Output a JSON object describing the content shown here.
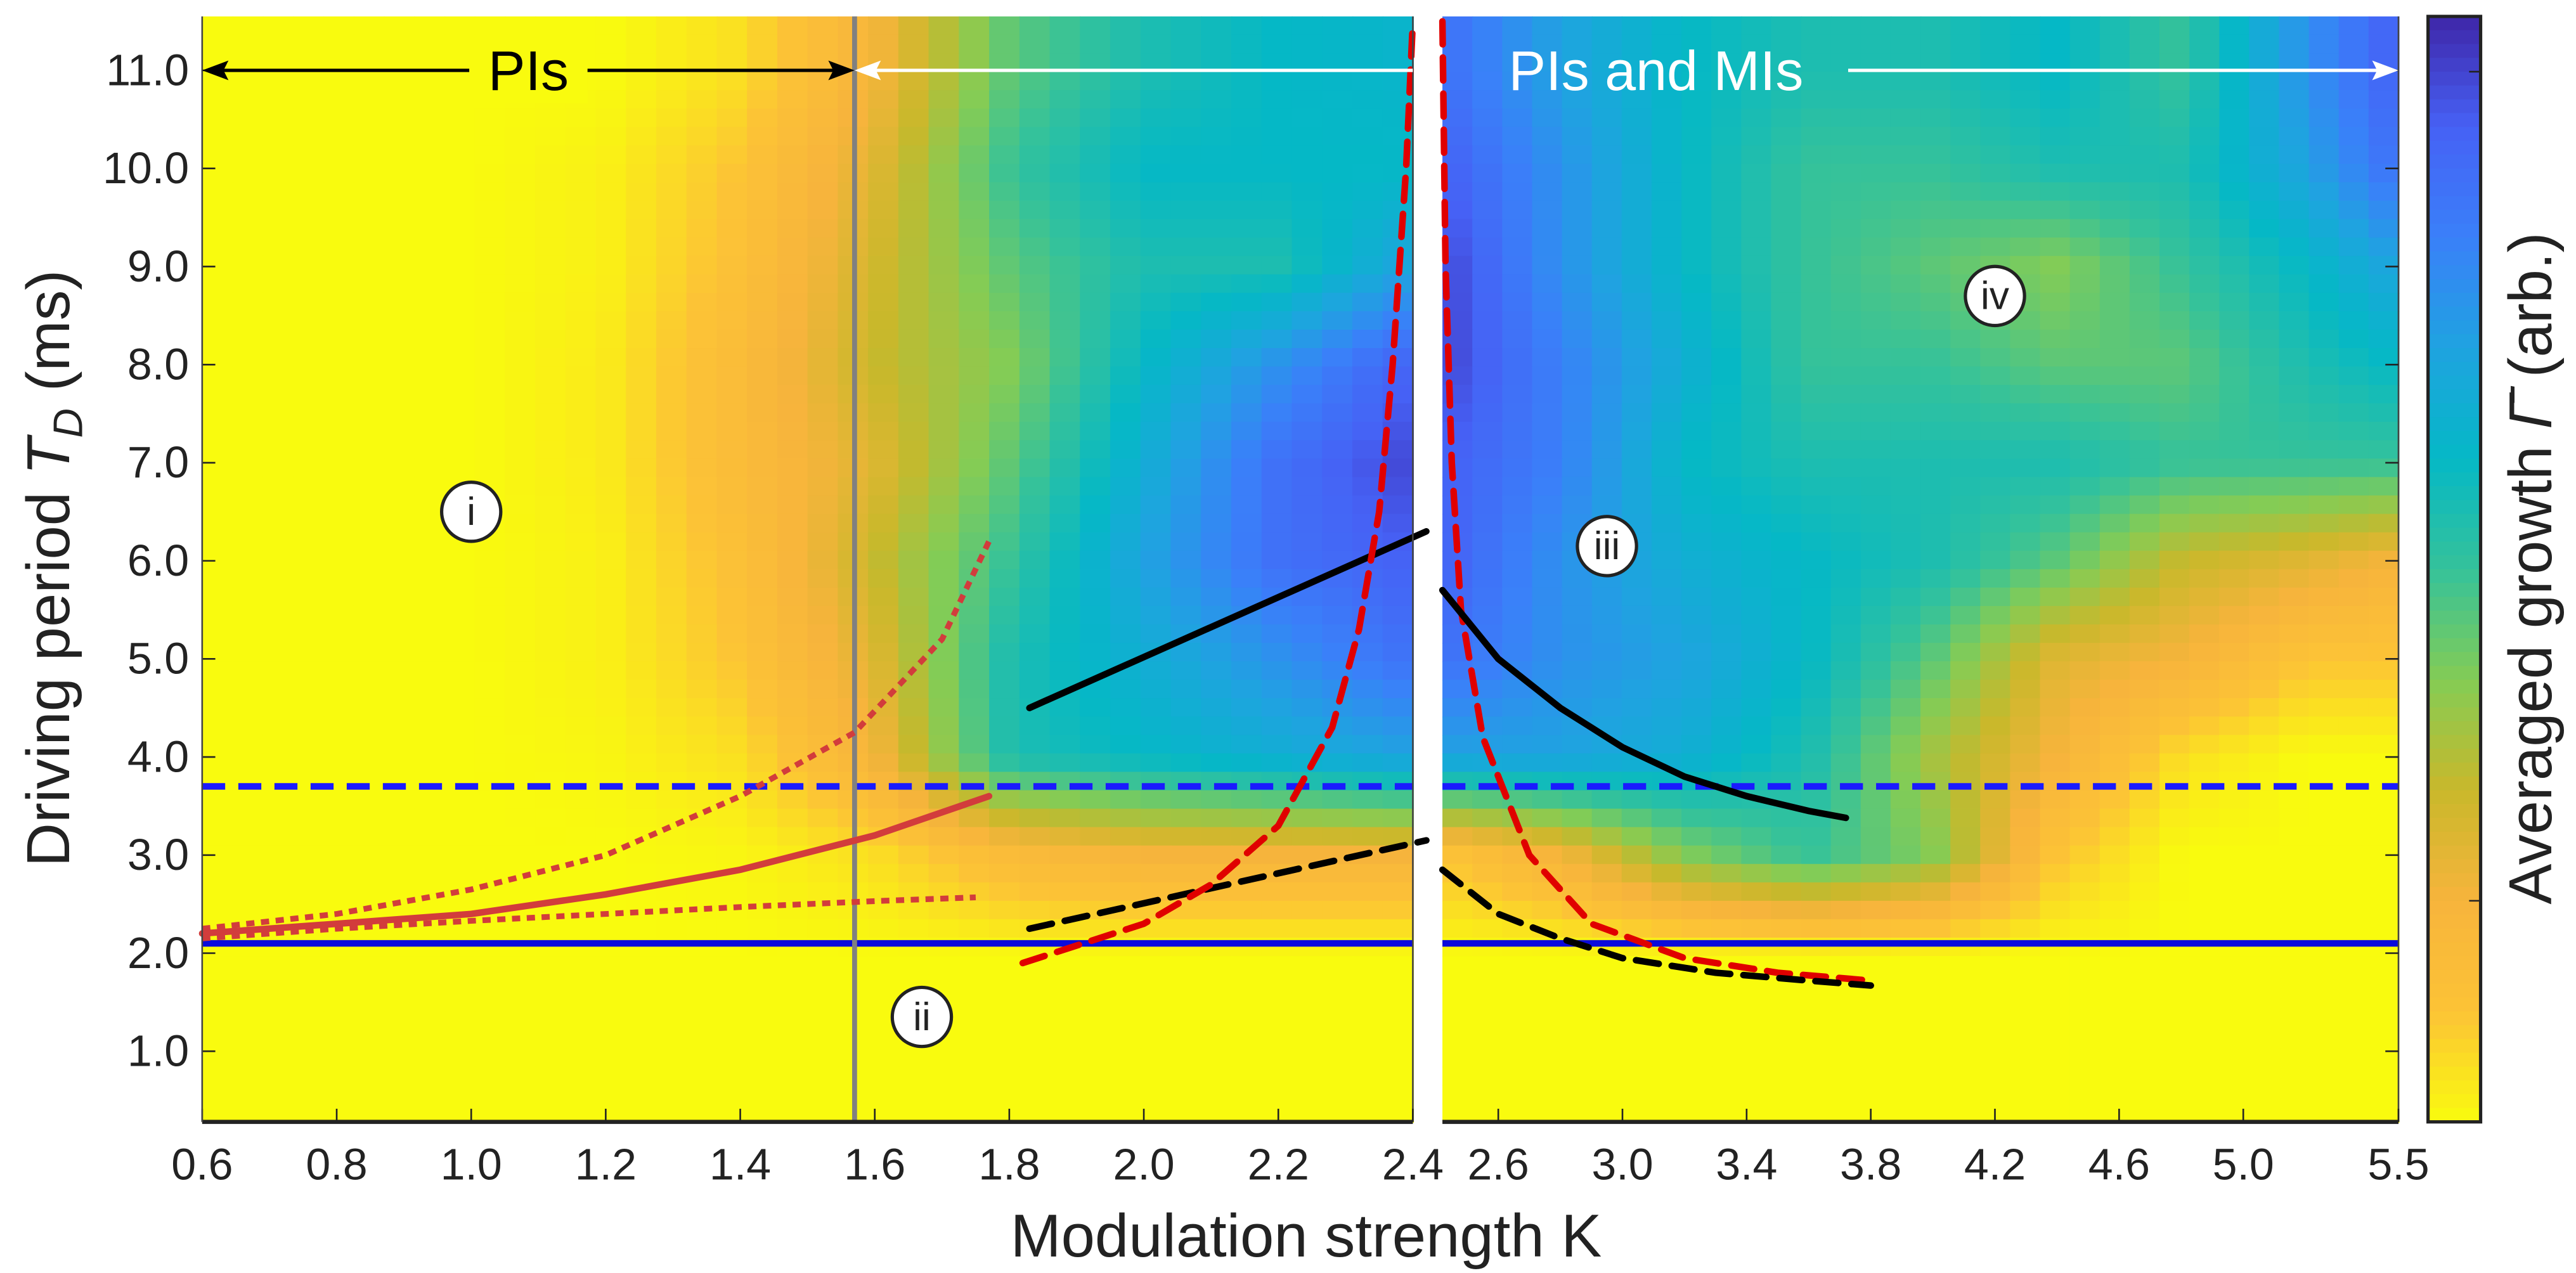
{
  "chart_data": {
    "type": "heatmap",
    "xlabel": "Modulation strength K",
    "ylabel": "Driving period T_D (ms)",
    "ylabel_parts": {
      "prefix": "Driving period ",
      "symbol": "T",
      "subscript": "D",
      "suffix": " (ms)"
    },
    "colorbar_label": "Averaged growth Γ̄ (arb.)",
    "colorbar_label_parts": {
      "prefix": "Averaged growth ",
      "symbol": "Γ̄",
      "suffix": " (arb.)"
    },
    "ylim": [
      0.28,
      11.55
    ],
    "yticks": [
      "1.0",
      "2.0",
      "3.0",
      "4.0",
      "5.0",
      "6.0",
      "7.0",
      "8.0",
      "9.0",
      "10.0",
      "11.0"
    ],
    "colormap": [
      "#f9fb0e",
      "#fcc336",
      "#f7b43c",
      "#c9b82b",
      "#84cc55",
      "#35c29a",
      "#05b8c6",
      "#1fa3e0",
      "#3a80f9",
      "#4661f5",
      "#3e26a8"
    ],
    "colorbar_range": [
      0,
      1
    ],
    "panels": [
      {
        "xlim": [
          0.6,
          2.4
        ],
        "xticks": [
          "0.6",
          "0.8",
          "1.0",
          "1.2",
          "1.4",
          "1.6",
          "1.8",
          "2.0",
          "2.2",
          "2.4"
        ],
        "grid_K": [
          0.6,
          0.8,
          1.0,
          1.2,
          1.4,
          1.6,
          1.8,
          2.0,
          2.2,
          2.4
        ],
        "grid_T": [
          11,
          10,
          9,
          8,
          7,
          6,
          5,
          4,
          3,
          2,
          1
        ],
        "values": [
          [
            0,
            0,
            0,
            0,
            0.05,
            0.2,
            0.45,
            0.55,
            0.6,
            0.62
          ],
          [
            0,
            0,
            0,
            0.02,
            0.1,
            0.25,
            0.5,
            0.6,
            0.6,
            0.6
          ],
          [
            0,
            0,
            0,
            0.02,
            0.12,
            0.28,
            0.45,
            0.55,
            0.55,
            0.7
          ],
          [
            0,
            0,
            0,
            0.03,
            0.15,
            0.3,
            0.4,
            0.6,
            0.75,
            0.9
          ],
          [
            0,
            0,
            0,
            0.03,
            0.15,
            0.25,
            0.45,
            0.65,
            0.85,
            0.95
          ],
          [
            0,
            0,
            0,
            0.02,
            0.12,
            0.3,
            0.5,
            0.7,
            0.85,
            0.9
          ],
          [
            0,
            0,
            0,
            0.02,
            0.1,
            0.25,
            0.55,
            0.65,
            0.75,
            0.85
          ],
          [
            0,
            0,
            0,
            0.01,
            0.05,
            0.2,
            0.55,
            0.6,
            0.65,
            0.7
          ],
          [
            0,
            0,
            0,
            0,
            0.01,
            0.05,
            0.15,
            0.2,
            0.2,
            0.2
          ],
          [
            0,
            0,
            0,
            0,
            0,
            0,
            0,
            0,
            0,
            0
          ],
          [
            0,
            0,
            0,
            0,
            0,
            0,
            0,
            0,
            0,
            0
          ]
        ]
      },
      {
        "xlim": [
          2.42,
          5.5
        ],
        "xticks": [
          "2.6",
          "3.0",
          "3.4",
          "3.8",
          "4.2",
          "4.6",
          "5.0",
          "5.5"
        ],
        "grid_K": [
          2.42,
          2.8,
          3.2,
          3.6,
          4.0,
          4.4,
          4.8,
          5.2,
          5.5
        ],
        "grid_T": [
          11,
          10,
          9,
          8,
          7,
          6,
          5,
          4,
          3,
          2,
          1
        ],
        "values": [
          [
            0.85,
            0.7,
            0.6,
            0.55,
            0.55,
            0.6,
            0.5,
            0.75,
            0.9
          ],
          [
            0.9,
            0.75,
            0.6,
            0.5,
            0.5,
            0.55,
            0.55,
            0.7,
            0.85
          ],
          [
            0.95,
            0.75,
            0.6,
            0.5,
            0.45,
            0.4,
            0.5,
            0.6,
            0.7
          ],
          [
            0.95,
            0.8,
            0.65,
            0.5,
            0.5,
            0.45,
            0.45,
            0.55,
            0.6
          ],
          [
            0.9,
            0.8,
            0.6,
            0.55,
            0.55,
            0.55,
            0.5,
            0.5,
            0.5
          ],
          [
            0.9,
            0.75,
            0.65,
            0.6,
            0.55,
            0.45,
            0.3,
            0.25,
            0.2
          ],
          [
            0.85,
            0.75,
            0.7,
            0.6,
            0.45,
            0.25,
            0.2,
            0.1,
            0.1
          ],
          [
            0.7,
            0.7,
            0.65,
            0.55,
            0.35,
            0.2,
            0.05,
            0,
            0
          ],
          [
            0.1,
            0.2,
            0.4,
            0.5,
            0.4,
            0.1,
            0,
            0,
            0
          ],
          [
            0,
            0,
            0,
            0,
            0,
            0,
            0,
            0,
            0
          ],
          [
            0,
            0,
            0,
            0,
            0,
            0,
            0,
            0,
            0
          ]
        ]
      }
    ],
    "lines": [
      {
        "panel": 0,
        "color": "#d23c3c",
        "style": "solid",
        "points": [
          [
            0.6,
            2.2
          ],
          [
            0.8,
            2.3
          ],
          [
            1.0,
            2.4
          ],
          [
            1.2,
            2.6
          ],
          [
            1.4,
            2.85
          ],
          [
            1.6,
            3.2
          ],
          [
            1.77,
            3.6
          ]
        ]
      },
      {
        "panel": 0,
        "color": "#d23c3c",
        "style": "dotted",
        "points": [
          [
            0.6,
            2.25
          ],
          [
            0.8,
            2.4
          ],
          [
            1.0,
            2.65
          ],
          [
            1.2,
            3.0
          ],
          [
            1.4,
            3.6
          ],
          [
            1.57,
            4.25
          ],
          [
            1.7,
            5.2
          ],
          [
            1.77,
            6.2
          ]
        ]
      },
      {
        "panel": 0,
        "color": "#d23c3c",
        "style": "dotted",
        "points": [
          [
            0.6,
            2.15
          ],
          [
            0.8,
            2.25
          ],
          [
            1.0,
            2.33
          ],
          [
            1.2,
            2.4
          ],
          [
            1.4,
            2.47
          ],
          [
            1.6,
            2.53
          ],
          [
            1.75,
            2.57
          ]
        ]
      },
      {
        "panel": 0,
        "color": "#000000",
        "style": "solid",
        "points": [
          [
            1.83,
            4.5
          ],
          [
            2.42,
            6.3
          ]
        ]
      },
      {
        "panel": 0,
        "color": "#000000",
        "style": "dashed",
        "points": [
          [
            1.83,
            2.25
          ],
          [
            2.42,
            3.15
          ]
        ]
      },
      {
        "panel": 0,
        "color": "#e00000",
        "style": "dashed",
        "points": [
          [
            1.82,
            1.9
          ],
          [
            2.0,
            2.3
          ],
          [
            2.1,
            2.7
          ],
          [
            2.2,
            3.3
          ],
          [
            2.28,
            4.3
          ],
          [
            2.32,
            5.3
          ],
          [
            2.35,
            6.5
          ],
          [
            2.37,
            8.0
          ],
          [
            2.39,
            10.0
          ],
          [
            2.4,
            11.5
          ]
        ]
      },
      {
        "panel": 1,
        "color": "#e00000",
        "style": "dashed",
        "points": [
          [
            2.42,
            11.5
          ],
          [
            2.43,
            9.0
          ],
          [
            2.45,
            7.0
          ],
          [
            2.48,
            5.5
          ],
          [
            2.55,
            4.2
          ],
          [
            2.7,
            3.0
          ],
          [
            2.9,
            2.3
          ],
          [
            3.2,
            1.95
          ],
          [
            3.5,
            1.8
          ],
          [
            3.8,
            1.72
          ]
        ]
      },
      {
        "panel": 1,
        "color": "#000000",
        "style": "solid",
        "points": [
          [
            2.42,
            5.7
          ],
          [
            2.6,
            5.0
          ],
          [
            2.8,
            4.5
          ],
          [
            3.0,
            4.1
          ],
          [
            3.2,
            3.8
          ],
          [
            3.4,
            3.6
          ],
          [
            3.6,
            3.45
          ],
          [
            3.72,
            3.38
          ]
        ]
      },
      {
        "panel": 1,
        "color": "#000000",
        "style": "dashed",
        "points": [
          [
            2.42,
            2.85
          ],
          [
            2.6,
            2.4
          ],
          [
            2.8,
            2.15
          ],
          [
            3.0,
            1.95
          ],
          [
            3.3,
            1.8
          ],
          [
            3.6,
            1.72
          ],
          [
            3.8,
            1.67
          ]
        ]
      }
    ],
    "hlines": [
      {
        "T": 3.7,
        "color": "#1a1aff",
        "style": "dashed"
      },
      {
        "T": 2.1,
        "color": "#0a0adc",
        "style": "solid"
      }
    ],
    "vline": {
      "K": 1.57,
      "color": "#808080"
    },
    "region_labels": [
      {
        "text": "i",
        "K": 1.0,
        "T": 6.5,
        "panel": 0
      },
      {
        "text": "ii",
        "K": 1.67,
        "T": 1.35,
        "panel": 0
      },
      {
        "text": "iii",
        "K": 2.95,
        "T": 6.15,
        "panel": 1
      },
      {
        "text": "iv",
        "K": 4.2,
        "T": 8.7,
        "panel": 1
      }
    ],
    "range_annotations": [
      {
        "text": "PIs",
        "from_K": 0.6,
        "to_K": 1.57,
        "T": 11.0,
        "color": "#000000"
      },
      {
        "text": "PIs and MIs",
        "from_K": 1.57,
        "to_K": 5.5,
        "T": 11.0,
        "color": "#ffffff"
      }
    ]
  }
}
